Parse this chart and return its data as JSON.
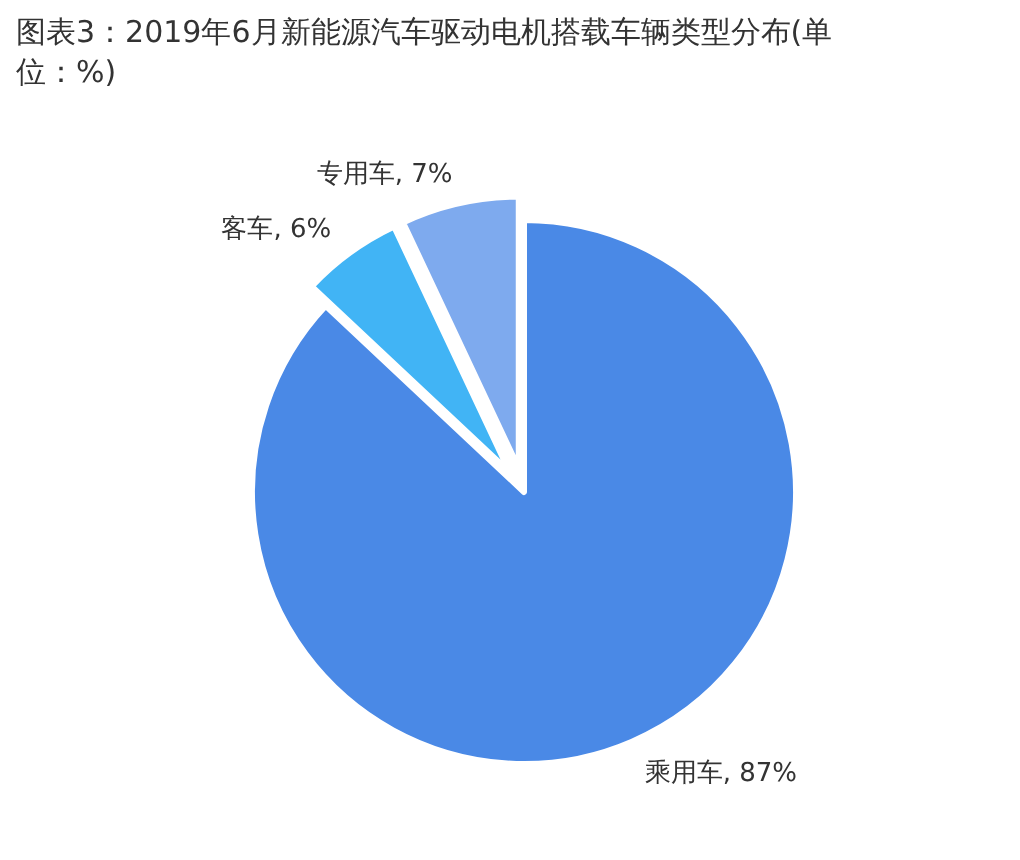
{
  "chart_data": {
    "type": "pie",
    "title": "图表3：2019年6月新能源汽车驱动电机搭载车辆类型分布(单位：%)",
    "categories": [
      "乘用车",
      "客车",
      "专用车"
    ],
    "values": [
      87,
      6,
      7
    ],
    "value_labels": [
      "87%",
      "6%",
      "7%"
    ],
    "colors": [
      "#4a89e6",
      "#41b4f5",
      "#7eaaee"
    ]
  }
}
